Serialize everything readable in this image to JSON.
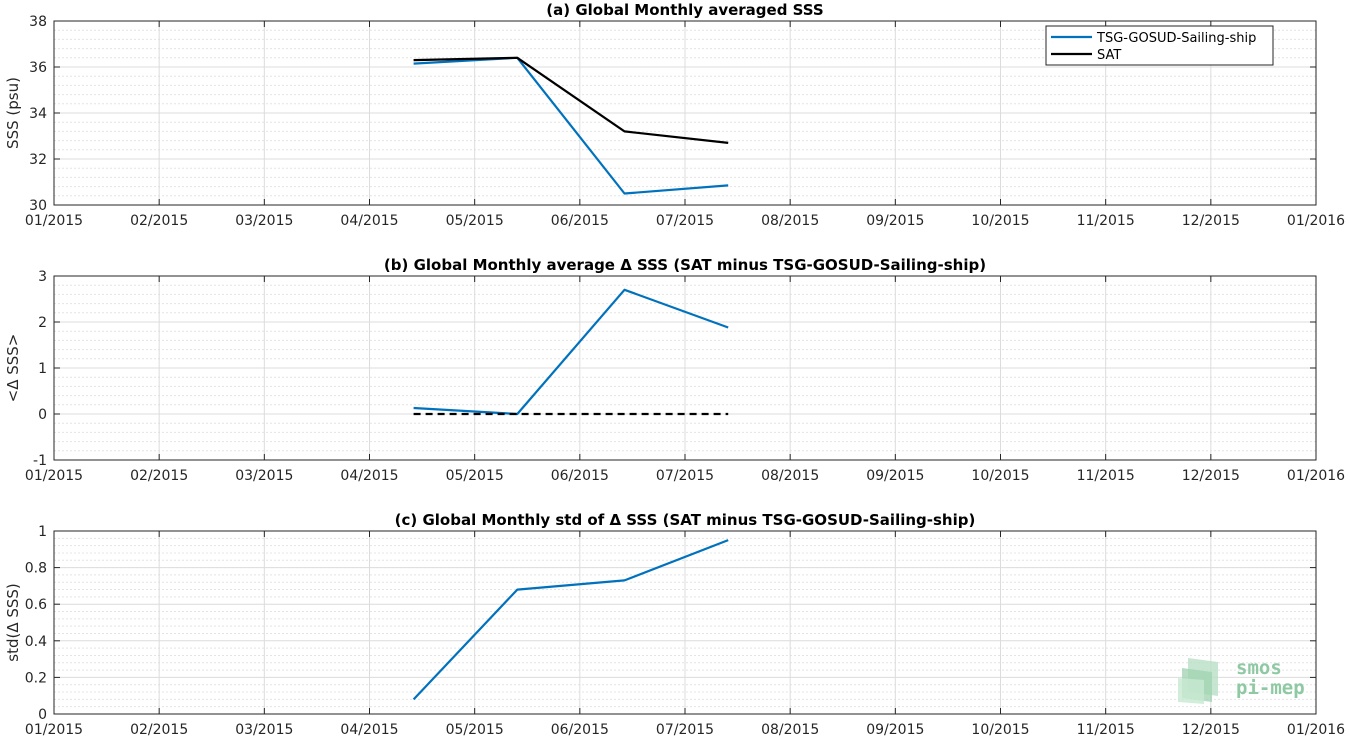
{
  "chart_data": [
    {
      "type": "line",
      "title": "(a) Global Monthly averaged SSS",
      "xlabel": "",
      "ylabel": "SSS (psu)",
      "x_ticks": [
        "01/2015",
        "02/2015",
        "03/2015",
        "04/2015",
        "05/2015",
        "06/2015",
        "07/2015",
        "08/2015",
        "09/2015",
        "10/2015",
        "11/2015",
        "12/2015",
        "01/2016"
      ],
      "y_ticks": [
        "30",
        "32",
        "34",
        "36",
        "38"
      ],
      "ylim": [
        30,
        38
      ],
      "grid": true,
      "minor_grid": true,
      "legend": "top-right",
      "x": [
        "2015-04-15",
        "2015-05-15",
        "2015-06-15",
        "2015-07-15"
      ],
      "series": [
        {
          "name": "TSG-GOSUD-Sailing-ship",
          "color": "#0072bd",
          "style": "solid",
          "values": [
            36.15,
            36.4,
            30.5,
            30.85
          ]
        },
        {
          "name": "SAT",
          "color": "#000000",
          "style": "solid",
          "values": [
            36.3,
            36.4,
            33.2,
            32.7
          ]
        }
      ]
    },
    {
      "type": "line",
      "title": "(b) Global Monthly average Δ SSS (SAT minus TSG-GOSUD-Sailing-ship)",
      "xlabel": "",
      "ylabel": "<Δ SSS>",
      "x_ticks": [
        "01/2015",
        "02/2015",
        "03/2015",
        "04/2015",
        "05/2015",
        "06/2015",
        "07/2015",
        "08/2015",
        "09/2015",
        "10/2015",
        "11/2015",
        "12/2015",
        "01/2016"
      ],
      "y_ticks": [
        "-1",
        "0",
        "1",
        "2",
        "3"
      ],
      "ylim": [
        -1,
        3
      ],
      "grid": true,
      "minor_grid": true,
      "x": [
        "2015-04-15",
        "2015-05-15",
        "2015-06-15",
        "2015-07-15"
      ],
      "series": [
        {
          "color": "#0072bd",
          "style": "solid",
          "values": [
            0.13,
            0.0,
            2.7,
            1.88
          ]
        },
        {
          "color": "#000000",
          "style": "dashed",
          "values": [
            0,
            0,
            0,
            0
          ]
        }
      ]
    },
    {
      "type": "line",
      "title": "(c) Global Monthly std of Δ SSS (SAT minus TSG-GOSUD-Sailing-ship)",
      "xlabel": "",
      "ylabel": "std(Δ SSS)",
      "x_ticks": [
        "01/2015",
        "02/2015",
        "03/2015",
        "04/2015",
        "05/2015",
        "06/2015",
        "07/2015",
        "08/2015",
        "09/2015",
        "10/2015",
        "11/2015",
        "12/2015",
        "01/2016"
      ],
      "y_ticks": [
        "0",
        "0.2",
        "0.4",
        "0.6",
        "0.8",
        "1"
      ],
      "ylim": [
        0,
        1
      ],
      "grid": true,
      "minor_grid": true,
      "x": [
        "2015-04-15",
        "2015-05-15",
        "2015-06-15",
        "2015-07-15"
      ],
      "series": [
        {
          "color": "#0072bd",
          "style": "solid",
          "values": [
            0.08,
            0.68,
            0.73,
            0.95
          ]
        }
      ]
    }
  ],
  "logo": {
    "line1": "smos",
    "line2": "pi-mep",
    "color": "#8fc9a3"
  }
}
